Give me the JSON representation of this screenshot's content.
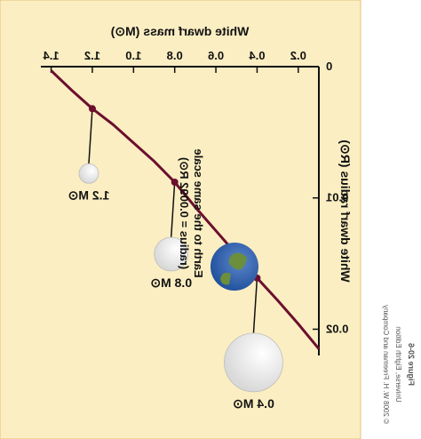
{
  "colors": {
    "panel": "#fbeec2",
    "border": "#e6c27a",
    "curve": "#6b0f2e",
    "axis": "#111111",
    "text": "#111111",
    "sphere": "#d9d9d9",
    "earth_ocean": "#1f4f9c",
    "earth_land": "#6b8f3a"
  },
  "credit": {
    "figure": "Figure 20-6",
    "book": "Universe, Eighth Edition",
    "copyright": "© 2008 W. H. Freeman and Company"
  },
  "earth_note": {
    "line1": "Earth to the same scale",
    "line2": "(radius = 0.0092 R",
    "sun_symbol": "⊙",
    "line2_end": ")"
  },
  "chart_data": {
    "type": "line",
    "title": "",
    "xlabel": "White dwarf mass (M⊙)",
    "ylabel": "White dwarf radius (R⊙)",
    "x_ticks": [
      "0.2",
      "0.4",
      "0.6",
      "0.8",
      "1.0",
      "1.2",
      "1.4"
    ],
    "x_tick_values": [
      0.2,
      0.4,
      0.6,
      0.8,
      1.0,
      1.2,
      1.4
    ],
    "y_ticks": [
      "0",
      "0.01",
      "0.02"
    ],
    "y_tick_values": [
      0,
      0.01,
      0.02
    ],
    "xlim": [
      0.1,
      1.45
    ],
    "ylim": [
      0,
      0.022
    ],
    "grid": false,
    "series": [
      {
        "x": [
          0.1,
          0.2,
          0.3,
          0.4,
          0.5,
          0.6,
          0.7,
          0.8,
          0.9,
          1.0,
          1.1,
          1.2,
          1.3,
          1.38,
          1.4
        ],
        "y": [
          0.0215,
          0.0196,
          0.0178,
          0.0161,
          0.0143,
          0.0125,
          0.0107,
          0.0088,
          0.0072,
          0.0058,
          0.0044,
          0.0032,
          0.0018,
          0.0006,
          0.0003
        ]
      }
    ],
    "highlighted_points": [
      {
        "label": "0.4 M⊙",
        "x": 0.4,
        "y": 0.0161
      },
      {
        "label": "0.8 M⊙",
        "x": 0.8,
        "y": 0.0088
      },
      {
        "label": "1.2 M⊙",
        "x": 1.2,
        "y": 0.0032
      }
    ]
  }
}
